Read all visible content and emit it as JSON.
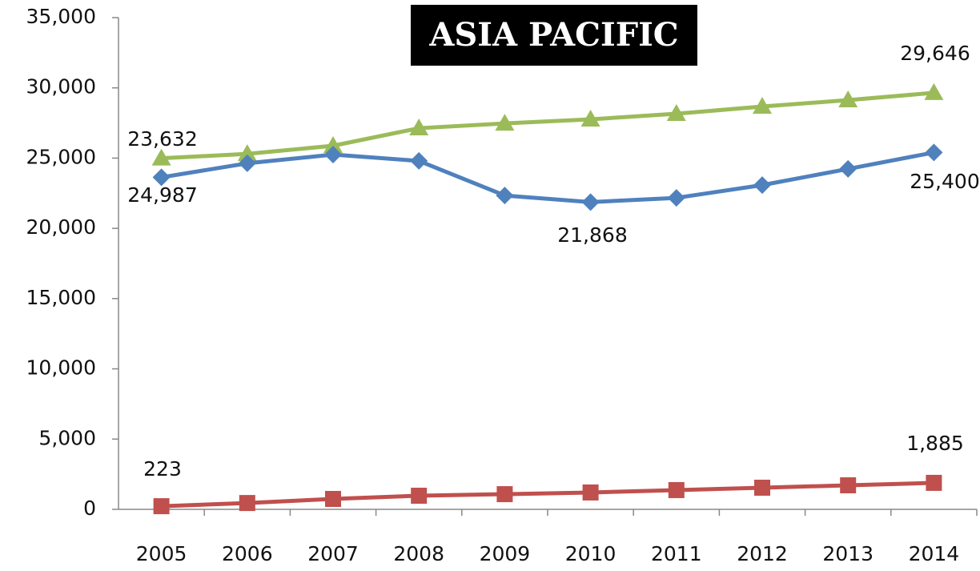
{
  "chart_data": {
    "type": "line",
    "title": "ASIA PACIFIC",
    "categories": [
      "2005",
      "2006",
      "2007",
      "2008",
      "2009",
      "2010",
      "2011",
      "2012",
      "2013",
      "2014"
    ],
    "ylim": [
      0,
      35000
    ],
    "yticks": [
      {
        "value": 0,
        "label": "0"
      },
      {
        "value": 5000,
        "label": "5,000"
      },
      {
        "value": 10000,
        "label": "10,000"
      },
      {
        "value": 15000,
        "label": "15,000"
      },
      {
        "value": 20000,
        "label": "20,000"
      },
      {
        "value": 25000,
        "label": "25,000"
      },
      {
        "value": 30000,
        "label": "30,000"
      },
      {
        "value": 35000,
        "label": "35,000"
      }
    ],
    "grid": false,
    "series": [
      {
        "color": "#9bbb59",
        "marker": "triangle",
        "values": [
          24987,
          25300,
          25880,
          27130,
          27470,
          27760,
          28160,
          28670,
          29130,
          29646
        ],
        "value_labels": [
          "24,987",
          null,
          null,
          null,
          null,
          null,
          null,
          null,
          null,
          "29,646"
        ]
      },
      {
        "color": "#4f81bd",
        "marker": "diamond",
        "values": [
          23632,
          24630,
          25250,
          24800,
          22340,
          21868,
          22170,
          23080,
          24230,
          25400
        ],
        "value_labels": [
          "23,632",
          null,
          null,
          null,
          null,
          "21,868",
          null,
          null,
          null,
          "25,400"
        ]
      },
      {
        "color": "#c0504d",
        "marker": "square",
        "values": [
          223,
          450,
          740,
          970,
          1080,
          1200,
          1370,
          1540,
          1710,
          1885
        ],
        "value_labels": [
          "223",
          null,
          null,
          null,
          null,
          null,
          null,
          null,
          null,
          "1,885"
        ]
      }
    ]
  }
}
